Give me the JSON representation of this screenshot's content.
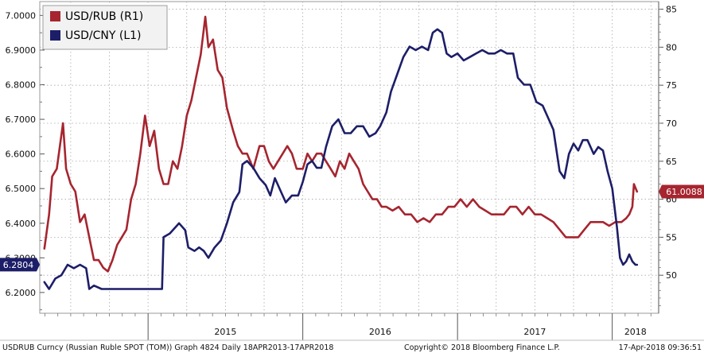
{
  "chart_data": {
    "type": "line",
    "legend": {
      "placement": "top-left"
    },
    "grid": true,
    "dual_axis": true,
    "left_axis": {
      "side": "left",
      "range": [
        6.14,
        7.04
      ],
      "ticks": [
        "6.2000",
        "6.3000",
        "6.4000",
        "6.5000",
        "6.6000",
        "6.7000",
        "6.8000",
        "6.9000",
        "7.0000"
      ]
    },
    "right_axis": {
      "side": "right",
      "range": [
        45,
        86
      ],
      "ticks": [
        "50",
        "55",
        "60",
        "65",
        "70",
        "75",
        "80",
        "85"
      ]
    },
    "x_axis": {
      "range": [
        2014.3,
        2018.3
      ],
      "year_labels": [
        "2015",
        "2016",
        "2017",
        "2018"
      ]
    },
    "series": [
      {
        "name": "USD/RUB (R1)",
        "axis": "right",
        "color": "#a6252f",
        "last_value_label": "61.0088",
        "points": [
          [
            2014.33,
            53.5
          ],
          [
            2014.36,
            58
          ],
          [
            2014.38,
            63
          ],
          [
            2014.41,
            64
          ],
          [
            2014.43,
            67
          ],
          [
            2014.45,
            70
          ],
          [
            2014.47,
            64
          ],
          [
            2014.5,
            62
          ],
          [
            2014.53,
            61
          ],
          [
            2014.56,
            57
          ],
          [
            2014.59,
            58
          ],
          [
            2014.62,
            55
          ],
          [
            2014.65,
            52
          ],
          [
            2014.68,
            52
          ],
          [
            2014.71,
            51
          ],
          [
            2014.74,
            50.5
          ],
          [
            2014.77,
            52
          ],
          [
            2014.8,
            54
          ],
          [
            2014.83,
            55
          ],
          [
            2014.86,
            56
          ],
          [
            2014.89,
            60
          ],
          [
            2014.92,
            62
          ],
          [
            2014.95,
            66
          ],
          [
            2014.98,
            71
          ],
          [
            2015.01,
            67
          ],
          [
            2015.04,
            69
          ],
          [
            2015.07,
            64
          ],
          [
            2015.1,
            62
          ],
          [
            2015.13,
            62
          ],
          [
            2015.16,
            65
          ],
          [
            2015.19,
            64
          ],
          [
            2015.22,
            67
          ],
          [
            2015.25,
            71
          ],
          [
            2015.28,
            73
          ],
          [
            2015.31,
            76
          ],
          [
            2015.34,
            79
          ],
          [
            2015.37,
            84
          ],
          [
            2015.39,
            80
          ],
          [
            2015.42,
            81
          ],
          [
            2015.45,
            77
          ],
          [
            2015.48,
            76
          ],
          [
            2015.51,
            72
          ],
          [
            2015.55,
            69
          ],
          [
            2015.58,
            67
          ],
          [
            2015.61,
            66
          ],
          [
            2015.64,
            66
          ],
          [
            2015.68,
            64
          ],
          [
            2015.72,
            67
          ],
          [
            2015.75,
            67
          ],
          [
            2015.78,
            65
          ],
          [
            2015.81,
            64
          ],
          [
            2015.84,
            65
          ],
          [
            2015.87,
            66
          ],
          [
            2015.9,
            67
          ],
          [
            2015.93,
            66
          ],
          [
            2015.96,
            64
          ],
          [
            2016.0,
            64
          ],
          [
            2016.03,
            66
          ],
          [
            2016.06,
            65
          ],
          [
            2016.09,
            66
          ],
          [
            2016.12,
            66
          ],
          [
            2016.15,
            65
          ],
          [
            2016.18,
            64
          ],
          [
            2016.21,
            63
          ],
          [
            2016.24,
            65
          ],
          [
            2016.27,
            64
          ],
          [
            2016.3,
            66
          ],
          [
            2016.33,
            65
          ],
          [
            2016.36,
            64
          ],
          [
            2016.39,
            62
          ],
          [
            2016.42,
            61
          ],
          [
            2016.45,
            60
          ],
          [
            2016.48,
            60
          ],
          [
            2016.51,
            59
          ],
          [
            2016.54,
            59
          ],
          [
            2016.58,
            58.5
          ],
          [
            2016.62,
            59
          ],
          [
            2016.66,
            58
          ],
          [
            2016.7,
            58
          ],
          [
            2016.74,
            57
          ],
          [
            2016.78,
            57.5
          ],
          [
            2016.82,
            57
          ],
          [
            2016.86,
            58
          ],
          [
            2016.9,
            58
          ],
          [
            2016.94,
            59
          ],
          [
            2016.98,
            59
          ],
          [
            2017.02,
            60
          ],
          [
            2017.06,
            59
          ],
          [
            2017.1,
            60
          ],
          [
            2017.14,
            59
          ],
          [
            2017.18,
            58.5
          ],
          [
            2017.22,
            58
          ],
          [
            2017.26,
            58
          ],
          [
            2017.3,
            58
          ],
          [
            2017.34,
            59
          ],
          [
            2017.38,
            59
          ],
          [
            2017.42,
            58
          ],
          [
            2017.46,
            59
          ],
          [
            2017.5,
            58
          ],
          [
            2017.54,
            58
          ],
          [
            2017.58,
            57.5
          ],
          [
            2017.62,
            57
          ],
          [
            2017.66,
            56
          ],
          [
            2017.7,
            55
          ],
          [
            2017.74,
            55
          ],
          [
            2017.78,
            55
          ],
          [
            2017.82,
            56
          ],
          [
            2017.86,
            57
          ],
          [
            2017.9,
            57
          ],
          [
            2017.94,
            57
          ],
          [
            2017.98,
            56.5
          ],
          [
            2018.02,
            57
          ],
          [
            2018.06,
            57
          ],
          [
            2018.09,
            57.5
          ],
          [
            2018.11,
            58
          ],
          [
            2018.13,
            59
          ],
          [
            2018.14,
            62
          ],
          [
            2018.15,
            61.5
          ],
          [
            2018.16,
            61
          ]
        ]
      },
      {
        "name": "USD/CNY (L1)",
        "axis": "left",
        "color": "#1d1e68",
        "last_value_label": "6.2804",
        "points": [
          [
            2014.33,
            6.23
          ],
          [
            2014.36,
            6.21
          ],
          [
            2014.4,
            6.24
          ],
          [
            2014.44,
            6.25
          ],
          [
            2014.48,
            6.28
          ],
          [
            2014.52,
            6.27
          ],
          [
            2014.56,
            6.28
          ],
          [
            2014.6,
            6.27
          ],
          [
            2014.62,
            6.21
          ],
          [
            2014.65,
            6.22
          ],
          [
            2014.7,
            6.21
          ],
          [
            2014.74,
            6.21
          ],
          [
            2014.78,
            6.21
          ],
          [
            2014.82,
            6.21
          ],
          [
            2014.86,
            6.21
          ],
          [
            2014.9,
            6.21
          ],
          [
            2014.94,
            6.21
          ],
          [
            2014.98,
            6.21
          ],
          [
            2015.02,
            6.21
          ],
          [
            2015.06,
            6.21
          ],
          [
            2015.09,
            6.21
          ],
          [
            2015.1,
            6.36
          ],
          [
            2015.14,
            6.37
          ],
          [
            2015.18,
            6.39
          ],
          [
            2015.2,
            6.4
          ],
          [
            2015.24,
            6.38
          ],
          [
            2015.26,
            6.33
          ],
          [
            2015.3,
            6.32
          ],
          [
            2015.33,
            6.33
          ],
          [
            2015.36,
            6.32
          ],
          [
            2015.39,
            6.3
          ],
          [
            2015.43,
            6.33
          ],
          [
            2015.47,
            6.35
          ],
          [
            2015.51,
            6.4
          ],
          [
            2015.55,
            6.46
          ],
          [
            2015.59,
            6.49
          ],
          [
            2015.61,
            6.57
          ],
          [
            2015.64,
            6.58
          ],
          [
            2015.68,
            6.56
          ],
          [
            2015.72,
            6.53
          ],
          [
            2015.76,
            6.51
          ],
          [
            2015.79,
            6.48
          ],
          [
            2015.82,
            6.53
          ],
          [
            2015.86,
            6.49
          ],
          [
            2015.89,
            6.46
          ],
          [
            2015.93,
            6.48
          ],
          [
            2015.97,
            6.48
          ],
          [
            2016.0,
            6.52
          ],
          [
            2016.03,
            6.57
          ],
          [
            2016.06,
            6.58
          ],
          [
            2016.09,
            6.56
          ],
          [
            2016.12,
            6.56
          ],
          [
            2016.15,
            6.62
          ],
          [
            2016.19,
            6.68
          ],
          [
            2016.23,
            6.7
          ],
          [
            2016.27,
            6.66
          ],
          [
            2016.31,
            6.66
          ],
          [
            2016.35,
            6.68
          ],
          [
            2016.39,
            6.68
          ],
          [
            2016.43,
            6.65
          ],
          [
            2016.47,
            6.66
          ],
          [
            2016.5,
            6.68
          ],
          [
            2016.54,
            6.72
          ],
          [
            2016.57,
            6.78
          ],
          [
            2016.61,
            6.83
          ],
          [
            2016.65,
            6.88
          ],
          [
            2016.69,
            6.91
          ],
          [
            2016.73,
            6.9
          ],
          [
            2016.77,
            6.91
          ],
          [
            2016.81,
            6.9
          ],
          [
            2016.84,
            6.95
          ],
          [
            2016.87,
            6.96
          ],
          [
            2016.9,
            6.95
          ],
          [
            2016.93,
            6.89
          ],
          [
            2016.96,
            6.88
          ],
          [
            2017.0,
            6.89
          ],
          [
            2017.04,
            6.87
          ],
          [
            2017.08,
            6.88
          ],
          [
            2017.12,
            6.89
          ],
          [
            2017.16,
            6.9
          ],
          [
            2017.2,
            6.89
          ],
          [
            2017.24,
            6.89
          ],
          [
            2017.28,
            6.9
          ],
          [
            2017.32,
            6.89
          ],
          [
            2017.36,
            6.89
          ],
          [
            2017.39,
            6.82
          ],
          [
            2017.43,
            6.8
          ],
          [
            2017.47,
            6.8
          ],
          [
            2017.51,
            6.75
          ],
          [
            2017.55,
            6.74
          ],
          [
            2017.59,
            6.7
          ],
          [
            2017.62,
            6.67
          ],
          [
            2017.66,
            6.55
          ],
          [
            2017.69,
            6.53
          ],
          [
            2017.72,
            6.6
          ],
          [
            2017.75,
            6.63
          ],
          [
            2017.78,
            6.61
          ],
          [
            2017.81,
            6.64
          ],
          [
            2017.84,
            6.64
          ],
          [
            2017.88,
            6.6
          ],
          [
            2017.91,
            6.62
          ],
          [
            2017.94,
            6.61
          ],
          [
            2017.97,
            6.55
          ],
          [
            2018.0,
            6.5
          ],
          [
            2018.03,
            6.39
          ],
          [
            2018.05,
            6.3
          ],
          [
            2018.07,
            6.28
          ],
          [
            2018.09,
            6.29
          ],
          [
            2018.11,
            6.31
          ],
          [
            2018.13,
            6.29
          ],
          [
            2018.15,
            6.28
          ],
          [
            2018.16,
            6.28
          ]
        ]
      }
    ],
    "footer_left": "USDRUB Curncy (Russian Ruble SPOT (TOM)) Graph 4824  Daily 18APR2013-17APR2018",
    "footer_middle": "Copyright© 2018 Bloomberg Finance L.P.",
    "footer_right": "17-Apr-2018 09:36:51"
  }
}
